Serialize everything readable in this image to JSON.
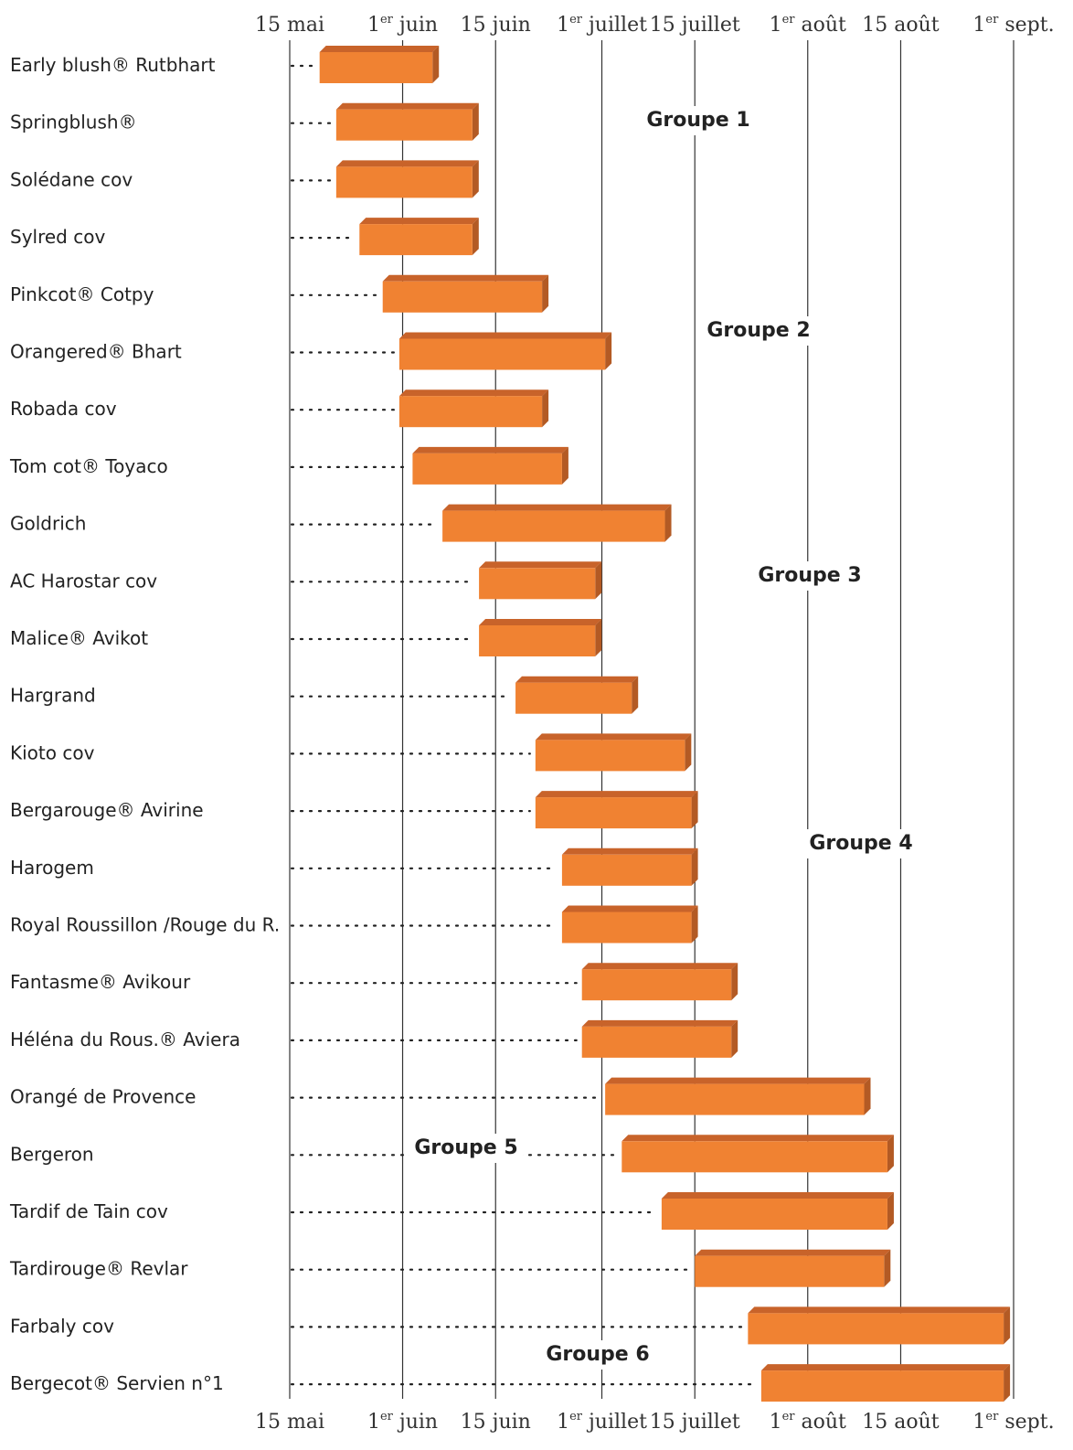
{
  "chart_data": {
    "type": "bar",
    "subtype": "gantt",
    "colors": {
      "bar_front": "#F08232",
      "bar_top": "#C8632A",
      "bar_side": "#B35A24",
      "grid": "#333333",
      "dots": "#222222"
    },
    "x_ticks": [
      {
        "day": 0,
        "num": "15",
        "sup": "",
        "text": "mai"
      },
      {
        "day": 17,
        "num": "1",
        "sup": "er",
        "text": "juin"
      },
      {
        "day": 31,
        "num": "15",
        "sup": "",
        "text": "juin"
      },
      {
        "day": 47,
        "num": "1",
        "sup": "er",
        "text": "juillet"
      },
      {
        "day": 61,
        "num": "15",
        "sup": "",
        "text": "juillet"
      },
      {
        "day": 78,
        "num": "1",
        "sup": "er",
        "text": "août"
      },
      {
        "day": 92,
        "num": "15",
        "sup": "",
        "text": "août"
      },
      {
        "day": 109,
        "num": "1",
        "sup": "er",
        "text": "sept."
      }
    ],
    "xlim": [
      0,
      109
    ],
    "rows": [
      {
        "variety": "Early blush® Rutbhart",
        "start": 4.5,
        "end": 21.5
      },
      {
        "variety": "Springblush®",
        "start": 7.0,
        "end": 27.5
      },
      {
        "variety": "Solédane cov",
        "start": 7.0,
        "end": 27.5
      },
      {
        "variety": "Sylred cov",
        "start": 10.5,
        "end": 27.5
      },
      {
        "variety": "Pinkcot® Cotpy",
        "start": 14.0,
        "end": 38.0
      },
      {
        "variety": "Orangered® Bhart",
        "start": 16.5,
        "end": 47.5
      },
      {
        "variety": "Robada cov",
        "start": 16.5,
        "end": 38.0
      },
      {
        "variety": "Tom cot® Toyaco",
        "start": 18.5,
        "end": 41.0
      },
      {
        "variety": "Goldrich",
        "start": 23.0,
        "end": 56.5
      },
      {
        "variety": "AC Harostar cov",
        "start": 28.5,
        "end": 46.0
      },
      {
        "variety": "Malice® Avikot",
        "start": 28.5,
        "end": 46.0
      },
      {
        "variety": "Hargrand",
        "start": 34.0,
        "end": 51.5
      },
      {
        "variety": "Kioto cov",
        "start": 37.0,
        "end": 59.5
      },
      {
        "variety": "Bergarouge® Avirine",
        "start": 37.0,
        "end": 60.5
      },
      {
        "variety": "Harogem",
        "start": 41.0,
        "end": 60.5
      },
      {
        "variety": "Royal Roussillon /Rouge du R.",
        "start": 41.0,
        "end": 60.5
      },
      {
        "variety": "Fantasme® Avikour",
        "start": 44.0,
        "end": 66.5
      },
      {
        "variety": "Héléna du Rous.® Aviera",
        "start": 44.0,
        "end": 66.5
      },
      {
        "variety": "Orangé de Provence",
        "start": 47.5,
        "end": 86.5
      },
      {
        "variety": "Bergeron",
        "start": 50.0,
        "end": 90.0
      },
      {
        "variety": "Tardif de Tain cov",
        "start": 56.0,
        "end": 90.0
      },
      {
        "variety": "Tardirouge® Revlar",
        "start": 61.0,
        "end": 89.5
      },
      {
        "variety": "Farbaly cov",
        "start": 69.0,
        "end": 107.5
      },
      {
        "variety": "Bergecot® Servien n°1",
        "start": 71.0,
        "end": 107.5
      }
    ],
    "groups": [
      {
        "label": "Groupe 1"
      },
      {
        "label": "Groupe 2"
      },
      {
        "label": "Groupe 3"
      },
      {
        "label": "Groupe 4"
      },
      {
        "label": "Groupe 5"
      },
      {
        "label": "Groupe 6"
      }
    ]
  }
}
